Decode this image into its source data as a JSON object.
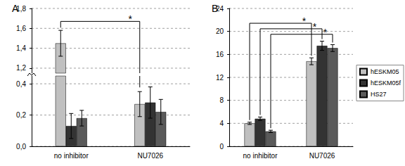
{
  "chart_data": [
    {
      "type": "bar",
      "title": "A",
      "categories": [
        "no inhibitor",
        "NU7026"
      ],
      "series": [
        {
          "name": "hESKM05",
          "color": "#c0c0c0",
          "values": [
            1.45,
            0.27
          ],
          "errors": [
            0.13,
            0.08
          ]
        },
        {
          "name": "hESKM05f",
          "color": "#333333",
          "values": [
            0.13,
            0.28
          ],
          "errors": [
            0.08,
            0.1
          ]
        },
        {
          "name": "HS27",
          "color": "#5a5a5a",
          "values": [
            0.18,
            0.22
          ],
          "errors": [
            0.05,
            0.08
          ]
        }
      ],
      "ylim": [
        0,
        1.8
      ],
      "y_break": [
        0.45,
        1.15
      ],
      "yticks": [
        {
          "value": 0,
          "label": "0,0"
        },
        {
          "value": 0.2,
          "label": "0,2"
        },
        {
          "value": 0.4,
          "label": "0,4"
        },
        {
          "value": 1.2,
          "label": "1,2"
        },
        {
          "value": 1.4,
          "label": "1,4"
        },
        {
          "value": 1.6,
          "label": "1,6"
        },
        {
          "value": 1.8,
          "label": "1,8"
        }
      ],
      "grid": true,
      "annotations": [
        {
          "text": "*",
          "series": "hESKM05",
          "from": "no inhibitor",
          "to": "NU7026"
        }
      ]
    },
    {
      "type": "bar",
      "title": "B",
      "categories": [
        "no inhibitor",
        "NU7026"
      ],
      "series": [
        {
          "name": "hESKM05",
          "color": "#c0c0c0",
          "values": [
            4.0,
            14.8
          ],
          "errors": [
            0.2,
            0.6
          ]
        },
        {
          "name": "hESKM05f",
          "color": "#333333",
          "values": [
            4.8,
            17.5
          ],
          "errors": [
            0.3,
            0.8
          ]
        },
        {
          "name": "HS27",
          "color": "#5a5a5a",
          "values": [
            2.6,
            17.1
          ],
          "errors": [
            0.2,
            0.6
          ]
        }
      ],
      "ylim": [
        0,
        24
      ],
      "yticks": [
        0,
        4,
        8,
        12,
        16,
        20,
        24
      ],
      "grid": true,
      "legend": "right",
      "annotations": [
        {
          "text": "*",
          "series": "hESKM05",
          "from": "no inhibitor",
          "to": "NU7026"
        },
        {
          "text": "*",
          "series": "hESKM05f",
          "from": "no inhibitor",
          "to": "NU7026"
        },
        {
          "text": "*",
          "series": "HS27",
          "from": "no inhibitor",
          "to": "NU7026"
        }
      ]
    }
  ]
}
